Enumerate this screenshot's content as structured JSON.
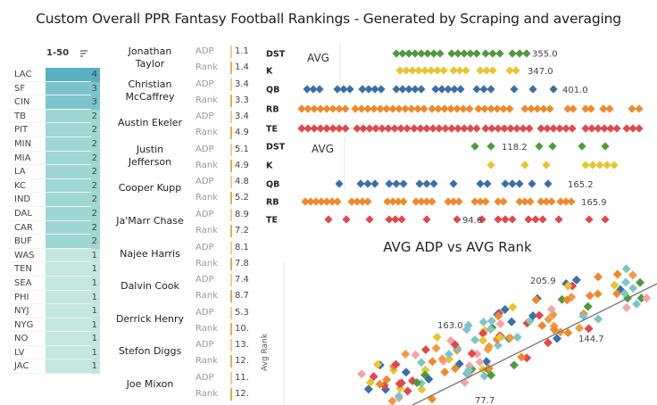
{
  "title": "Custom Overall PPR Fantasy Football Rankings - Generated by Scraping and averaging",
  "teams": {
    "header": "1-50",
    "icon": "sort-icon",
    "rows": [
      {
        "team": "LAC",
        "count": "4",
        "color": "#5aafc2"
      },
      {
        "team": "SF",
        "count": "3",
        "color": "#7cc4cc"
      },
      {
        "team": "CIN",
        "count": "3",
        "color": "#7cc4cc"
      },
      {
        "team": "TB",
        "count": "2",
        "color": "#9fd7d2"
      },
      {
        "team": "PIT",
        "count": "2",
        "color": "#9fd7d2"
      },
      {
        "team": "MIN",
        "count": "2",
        "color": "#9fd7d2"
      },
      {
        "team": "MIA",
        "count": "2",
        "color": "#9fd7d2"
      },
      {
        "team": "LA",
        "count": "2",
        "color": "#9fd7d2"
      },
      {
        "team": "KC",
        "count": "2",
        "color": "#9fd7d2"
      },
      {
        "team": "IND",
        "count": "2",
        "color": "#9fd7d2"
      },
      {
        "team": "DAL",
        "count": "2",
        "color": "#9fd7d2"
      },
      {
        "team": "CAR",
        "count": "2",
        "color": "#9fd7d2"
      },
      {
        "team": "BUF",
        "count": "2",
        "color": "#9fd7d2"
      },
      {
        "team": "WAS",
        "count": "1",
        "color": "#c3e7df"
      },
      {
        "team": "TEN",
        "count": "1",
        "color": "#c3e7df"
      },
      {
        "team": "SEA",
        "count": "1",
        "color": "#c3e7df"
      },
      {
        "team": "PHI",
        "count": "1",
        "color": "#c3e7df"
      },
      {
        "team": "NYJ",
        "count": "1",
        "color": "#c3e7df"
      },
      {
        "team": "NYG",
        "count": "1",
        "color": "#c3e7df"
      },
      {
        "team": "NO",
        "count": "1",
        "color": "#c3e7df"
      },
      {
        "team": "LV",
        "count": "1",
        "color": "#c3e7df"
      },
      {
        "team": "JAC",
        "count": "1",
        "color": "#c3e7df"
      }
    ]
  },
  "players": [
    {
      "name": "Jonathan Taylor",
      "adp_label": "ADP",
      "adp": "1.1",
      "rank_label": "Rank",
      "rank": "1.4"
    },
    {
      "name": "Christian McCaffrey",
      "adp_label": "ADP",
      "adp": "3.4",
      "rank_label": "Rank",
      "rank": "3.3"
    },
    {
      "name": "Austin Ekeler",
      "adp_label": "ADP",
      "adp": "3.4",
      "rank_label": "Rank",
      "rank": "4.9"
    },
    {
      "name": "Justin Jefferson",
      "adp_label": "ADP",
      "adp": "5.1",
      "rank_label": "Rank",
      "rank": "4.9"
    },
    {
      "name": "Cooper Kupp",
      "adp_label": "ADP",
      "adp": "4.8",
      "rank_label": "Rank",
      "rank": "5.2"
    },
    {
      "name": "Ja'Marr Chase",
      "adp_label": "ADP",
      "adp": "8.9",
      "rank_label": "Rank",
      "rank": "7.2"
    },
    {
      "name": "Najee Harris",
      "adp_label": "ADP",
      "adp": "8.1",
      "rank_label": "Rank",
      "rank": "7.8"
    },
    {
      "name": "Dalvin Cook",
      "adp_label": "ADP",
      "adp": "7.4",
      "rank_label": "Rank",
      "rank": "8.7"
    },
    {
      "name": "Derrick Henry",
      "adp_label": "ADP",
      "adp": "5.3",
      "rank_label": "Rank",
      "rank": "10."
    },
    {
      "name": "Stefon Diggs",
      "adp_label": "ADP",
      "adp": "13.",
      "rank_label": "Rank",
      "rank": "12."
    },
    {
      "name": "Joe Mixon",
      "adp_label": "ADP",
      "adp": "11.",
      "rank_label": "Rank",
      "rank": "12."
    }
  ],
  "position_colors": {
    "DST": "#4f9a3c",
    "K": "#e8c531",
    "QB": "#3b6fa8",
    "RB": "#ee8a2c",
    "TE": "#e2484b"
  },
  "strip_top": {
    "avg_label": "AVG",
    "rows": [
      {
        "pos": "DST",
        "value": "355.0"
      },
      {
        "pos": "K",
        "value": "347.0"
      },
      {
        "pos": "QB",
        "value": "401.0"
      },
      {
        "pos": "RB",
        "value": ""
      },
      {
        "pos": "TE",
        "value": ""
      }
    ]
  },
  "strip_bottom": {
    "avg_label": "AVG",
    "rows": [
      {
        "pos": "DST",
        "value": "118.2"
      },
      {
        "pos": "K",
        "value": ""
      },
      {
        "pos": "QB",
        "value": "165.2"
      },
      {
        "pos": "RB",
        "value": "165.9"
      },
      {
        "pos": "TE",
        "value": "94.6"
      }
    ]
  },
  "chart_data": {
    "type": "scatter",
    "title": "AVG ADP vs AVG Rank",
    "xlabel": "",
    "ylabel": "Avg Rank",
    "annotations": [
      "205.9",
      "163.0",
      "144.7",
      "77.7"
    ],
    "trend_line": true
  }
}
